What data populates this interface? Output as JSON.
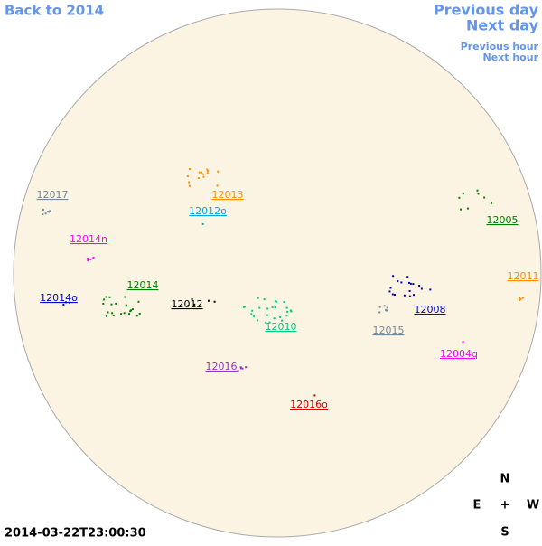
{
  "navigation": {
    "back": "Back to 2014",
    "previous_day": "Previous day",
    "next_day": "Next day",
    "previous_hour": "Previous hour",
    "next_hour": "Next hour"
  },
  "regions": [
    {
      "label": "12017",
      "color": "#778899"
    },
    {
      "label": "12013",
      "color": "#ff8c00"
    },
    {
      "label": "12012o",
      "color": "#00a8e0"
    },
    {
      "label": "12005",
      "color": "#008000"
    },
    {
      "label": "12014n",
      "color": "#ff00ff"
    },
    {
      "label": "12011",
      "color": "#ff8c00"
    },
    {
      "label": "12014",
      "color": "#008000"
    },
    {
      "label": "12014o",
      "color": "#0000cc"
    },
    {
      "label": "12012",
      "color": "#000000"
    },
    {
      "label": "12008",
      "color": "#0000cc"
    },
    {
      "label": "12010",
      "color": "#00cc88"
    },
    {
      "label": "12015",
      "color": "#778899"
    },
    {
      "label": "12004q",
      "color": "#ff00ff"
    },
    {
      "label": "12016",
      "color": "#9932cc"
    },
    {
      "label": "12016o",
      "color": "#dd0000"
    }
  ],
  "compass": {
    "north": "N",
    "east": "E",
    "center": "+",
    "west": "W",
    "south": "S"
  },
  "timestamp": "2014-03-22T23:00:30"
}
